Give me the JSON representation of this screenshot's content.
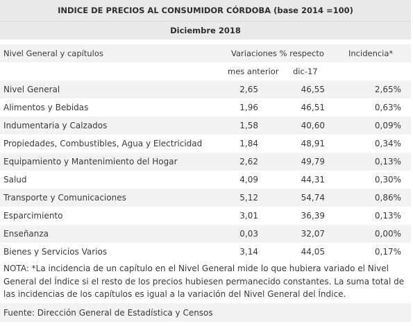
{
  "title": "INDICE DE PRECIOS AL CONSUMIDOR CÓRDOBA (base 2014 =100)",
  "subtitle": "Diciembre 2018",
  "header": {
    "chapter_label": "Nivel General y capítulos",
    "variations_label": "Variaciones % respecto",
    "incidence_label": "Incidencia*",
    "prev_month_label": "mes anterior",
    "dic17_label": "dic-17"
  },
  "rows": [
    {
      "name": "Nivel General",
      "mes": "2,65",
      "dic": "46,55",
      "inc": "2,65%"
    },
    {
      "name": "Alimentos y Bebidas",
      "mes": "1,96",
      "dic": "46,51",
      "inc": "0,63%"
    },
    {
      "name": "Indumentaria y Calzados",
      "mes": "1,58",
      "dic": "40,60",
      "inc": "0,09%"
    },
    {
      "name": "Propiedades, Combustibles, Agua y Electricidad",
      "mes": "1,84",
      "dic": "48,91",
      "inc": "0,34%"
    },
    {
      "name": "Equipamiento y Mantenimiento del Hogar",
      "mes": "2,62",
      "dic": "49,79",
      "inc": "0,13%"
    },
    {
      "name": "Salud",
      "mes": "4,09",
      "dic": "44,31",
      "inc": "0,30%"
    },
    {
      "name": "Transporte y Comunicaciones",
      "mes": "5,12",
      "dic": "54,74",
      "inc": "0,86%"
    },
    {
      "name": "Esparcimiento",
      "mes": "3,01",
      "dic": "36,39",
      "inc": "0,13%"
    },
    {
      "name": "Enseñanza",
      "mes": "0,03",
      "dic": "32,07",
      "inc": "0,00%"
    },
    {
      "name": "Bienes y Servicios Varios",
      "mes": "3,14",
      "dic": "44,05",
      "inc": "0,17%"
    }
  ],
  "note": "NOTA: *La incidencia de un capítulo en el Nivel General mide lo que hubiera variado el Nivel General del Índice si el resto de los precios hubiesen permanecido constantes. La suma total de las incidencias de los capítulos es igual a la variación del Nivel General del Índice.",
  "source": "Fuente: Dirección General de Estadística y Censos"
}
